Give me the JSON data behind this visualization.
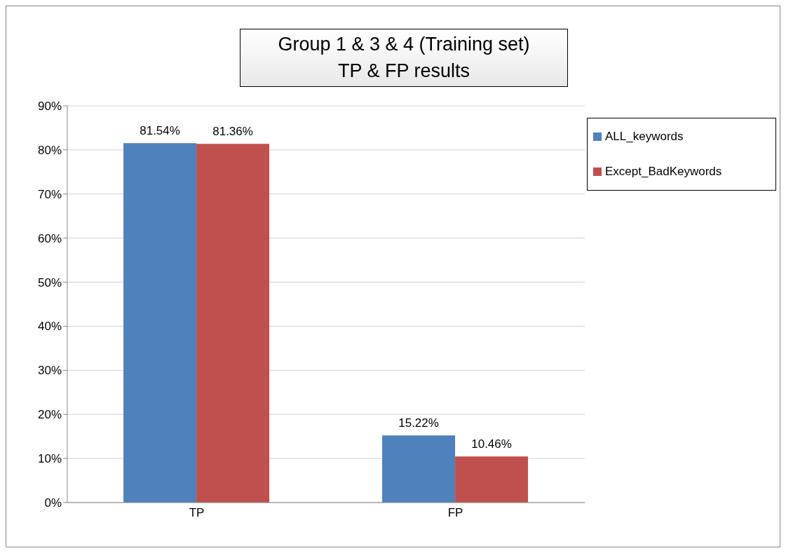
{
  "chart_data": {
    "type": "bar",
    "title": "Group 1 & 3 & 4 (Training set)\nTP & FP results",
    "categories": [
      "TP",
      "FP"
    ],
    "series": [
      {
        "name": "ALL_keywords",
        "color": "#4f81bd",
        "values": [
          81.54,
          15.22
        ],
        "value_labels": [
          "81.54%",
          "15.22%"
        ]
      },
      {
        "name": "Except_BadKeywords",
        "color": "#c0504d",
        "values": [
          81.36,
          10.46
        ],
        "value_labels": [
          "81.36%",
          "10.46%"
        ]
      }
    ],
    "ylim": [
      0,
      90
    ],
    "yticks": [
      {
        "value": 0,
        "label": "0%"
      },
      {
        "value": 10,
        "label": "10%"
      },
      {
        "value": 20,
        "label": "20%"
      },
      {
        "value": 30,
        "label": "30%"
      },
      {
        "value": 40,
        "label": "40%"
      },
      {
        "value": 50,
        "label": "50%"
      },
      {
        "value": 60,
        "label": "60%"
      },
      {
        "value": 70,
        "label": "70%"
      },
      {
        "value": 80,
        "label": "80%"
      },
      {
        "value": 90,
        "label": "90%"
      }
    ],
    "grid": "y",
    "legend": "right"
  }
}
